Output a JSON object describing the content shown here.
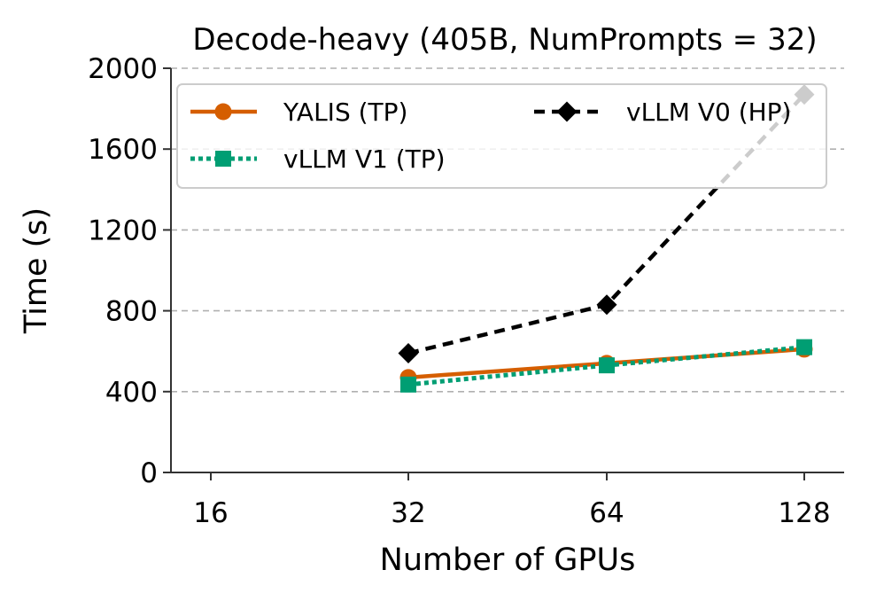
{
  "chart_data": {
    "type": "line",
    "title": "Decode-heavy (405B, NumPrompts = 32)",
    "xlabel": "Number of GPUs",
    "ylabel": "Time (s)",
    "categories": [
      "16",
      "32",
      "64",
      "128"
    ],
    "yticks": [
      0,
      400,
      800,
      1200,
      1600,
      2000
    ],
    "ylim": [
      0,
      2000
    ],
    "grid": "horizontal-dashed",
    "legend_position": "top",
    "series": [
      {
        "name": "YALIS (TP)",
        "color": "#d55e00",
        "marker": "circle",
        "line_style": "solid",
        "points": [
          {
            "category": "32",
            "value": 470
          },
          {
            "category": "64",
            "value": 540
          },
          {
            "category": "128",
            "value": 610
          }
        ]
      },
      {
        "name": "vLLM V0 (HP)",
        "color": "#000000",
        "marker": "diamond",
        "line_style": "dashed",
        "points": [
          {
            "category": "32",
            "value": 590
          },
          {
            "category": "64",
            "value": 830
          },
          {
            "category": "128",
            "value": 1870
          }
        ]
      },
      {
        "name": "vLLM V1 (TP)",
        "color": "#009e73",
        "marker": "square",
        "line_style": "dotted",
        "points": [
          {
            "category": "32",
            "value": 435
          },
          {
            "category": "64",
            "value": 530
          },
          {
            "category": "128",
            "value": 620
          }
        ]
      }
    ]
  }
}
